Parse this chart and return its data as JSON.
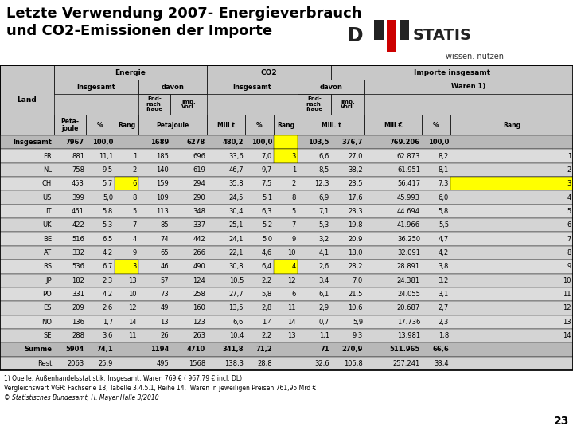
{
  "title_line1": "Letzte Verwendung 2007- Energieverbrauch",
  "title_line2": "und CO2-Emissionen der Importe",
  "footer1": "1) Quelle: Außenhandelsstatistik: Insgesamt: Waren 769 € ( 967,79 € incl. DL)",
  "footer2": "Vergleichswert VGR: Fachserie 18, Tabelle 3.4.5.1, Reihe 14,  Waren in jeweiligen Preisen 761,95 Mrd €",
  "footer3": "© Statistisches Bundesamt, H. Mayer Halle 3/2010",
  "page_number": "23",
  "bg_color": "#c8c8c8",
  "highlight_yellow": "#ffff00",
  "rows": [
    {
      "land": "Insgesamt",
      "pj": "7967",
      "pct1": "100,0",
      "rang1": "",
      "endnach": "1689",
      "imp_vorl": "6278",
      "mill_t": "480,2",
      "pct2": "100,0",
      "rang2": "",
      "endnach2": "103,5",
      "imp_vorl2": "376,7",
      "mill_c": "769.206",
      "pct3": "100,0",
      "rang3": "",
      "bold": true,
      "hl1": false,
      "hl2": true,
      "hl3": false
    },
    {
      "land": "FR",
      "pj": "881",
      "pct1": "11,1",
      "rang1": "1",
      "endnach": "185",
      "imp_vorl": "696",
      "mill_t": "33,6",
      "pct2": "7,0",
      "rang2": "3",
      "endnach2": "6,6",
      "imp_vorl2": "27,0",
      "mill_c": "62.873",
      "pct3": "8,2",
      "rang3": "1",
      "bold": false,
      "hl1": false,
      "hl2": true,
      "hl3": false
    },
    {
      "land": "NL",
      "pj": "758",
      "pct1": "9,5",
      "rang1": "2",
      "endnach": "140",
      "imp_vorl": "619",
      "mill_t": "46,7",
      "pct2": "9,7",
      "rang2": "1",
      "endnach2": "8,5",
      "imp_vorl2": "38,2",
      "mill_c": "61.951",
      "pct3": "8,1",
      "rang3": "2",
      "bold": false,
      "hl1": false,
      "hl2": false,
      "hl3": false
    },
    {
      "land": "CH",
      "pj": "453",
      "pct1": "5,7",
      "rang1": "6",
      "endnach": "159",
      "imp_vorl": "294",
      "mill_t": "35,8",
      "pct2": "7,5",
      "rang2": "2",
      "endnach2": "12,3",
      "imp_vorl2": "23,5",
      "mill_c": "56.417",
      "pct3": "7,3",
      "rang3": "3",
      "bold": false,
      "hl1": true,
      "hl2": false,
      "hl3": true
    },
    {
      "land": "US",
      "pj": "399",
      "pct1": "5,0",
      "rang1": "8",
      "endnach": "109",
      "imp_vorl": "290",
      "mill_t": "24,5",
      "pct2": "5,1",
      "rang2": "8",
      "endnach2": "6,9",
      "imp_vorl2": "17,6",
      "mill_c": "45.993",
      "pct3": "6,0",
      "rang3": "4",
      "bold": false,
      "hl1": false,
      "hl2": false,
      "hl3": false
    },
    {
      "land": "IT",
      "pj": "461",
      "pct1": "5,8",
      "rang1": "5",
      "endnach": "113",
      "imp_vorl": "348",
      "mill_t": "30,4",
      "pct2": "6,3",
      "rang2": "5",
      "endnach2": "7,1",
      "imp_vorl2": "23,3",
      "mill_c": "44.694",
      "pct3": "5,8",
      "rang3": "5",
      "bold": false,
      "hl1": false,
      "hl2": false,
      "hl3": false
    },
    {
      "land": "UK",
      "pj": "422",
      "pct1": "5,3",
      "rang1": "7",
      "endnach": "85",
      "imp_vorl": "337",
      "mill_t": "25,1",
      "pct2": "5,2",
      "rang2": "7",
      "endnach2": "5,3",
      "imp_vorl2": "19,8",
      "mill_c": "41.966",
      "pct3": "5,5",
      "rang3": "6",
      "bold": false,
      "hl1": false,
      "hl2": false,
      "hl3": false
    },
    {
      "land": "BE",
      "pj": "516",
      "pct1": "6,5",
      "rang1": "4",
      "endnach": "74",
      "imp_vorl": "442",
      "mill_t": "24,1",
      "pct2": "5,0",
      "rang2": "9",
      "endnach2": "3,2",
      "imp_vorl2": "20,9",
      "mill_c": "36.250",
      "pct3": "4,7",
      "rang3": "7",
      "bold": false,
      "hl1": false,
      "hl2": false,
      "hl3": false
    },
    {
      "land": "AT",
      "pj": "332",
      "pct1": "4,2",
      "rang1": "9",
      "endnach": "65",
      "imp_vorl": "266",
      "mill_t": "22,1",
      "pct2": "4,6",
      "rang2": "10",
      "endnach2": "4,1",
      "imp_vorl2": "18,0",
      "mill_c": "32.091",
      "pct3": "4,2",
      "rang3": "8",
      "bold": false,
      "hl1": false,
      "hl2": false,
      "hl3": false
    },
    {
      "land": "RS",
      "pj": "536",
      "pct1": "6,7",
      "rang1": "3",
      "endnach": "46",
      "imp_vorl": "490",
      "mill_t": "30,8",
      "pct2": "6,4",
      "rang2": "4",
      "endnach2": "2,6",
      "imp_vorl2": "28,2",
      "mill_c": "28.891",
      "pct3": "3,8",
      "rang3": "9",
      "bold": false,
      "hl1": true,
      "hl2": true,
      "hl3": false
    },
    {
      "land": "JP",
      "pj": "182",
      "pct1": "2,3",
      "rang1": "13",
      "endnach": "57",
      "imp_vorl": "124",
      "mill_t": "10,5",
      "pct2": "2,2",
      "rang2": "12",
      "endnach2": "3,4",
      "imp_vorl2": "7,0",
      "mill_c": "24.381",
      "pct3": "3,2",
      "rang3": "10",
      "bold": false,
      "hl1": false,
      "hl2": false,
      "hl3": false
    },
    {
      "land": "PO",
      "pj": "331",
      "pct1": "4,2",
      "rang1": "10",
      "endnach": "73",
      "imp_vorl": "258",
      "mill_t": "27,7",
      "pct2": "5,8",
      "rang2": "6",
      "endnach2": "6,1",
      "imp_vorl2": "21,5",
      "mill_c": "24.055",
      "pct3": "3,1",
      "rang3": "11",
      "bold": false,
      "hl1": false,
      "hl2": false,
      "hl3": false
    },
    {
      "land": "ES",
      "pj": "209",
      "pct1": "2,6",
      "rang1": "12",
      "endnach": "49",
      "imp_vorl": "160",
      "mill_t": "13,5",
      "pct2": "2,8",
      "rang2": "11",
      "endnach2": "2,9",
      "imp_vorl2": "10,6",
      "mill_c": "20.687",
      "pct3": "2,7",
      "rang3": "12",
      "bold": false,
      "hl1": false,
      "hl2": false,
      "hl3": false
    },
    {
      "land": "NO",
      "pj": "136",
      "pct1": "1,7",
      "rang1": "14",
      "endnach": "13",
      "imp_vorl": "123",
      "mill_t": "6,6",
      "pct2": "1,4",
      "rang2": "14",
      "endnach2": "0,7",
      "imp_vorl2": "5,9",
      "mill_c": "17.736",
      "pct3": "2,3",
      "rang3": "13",
      "bold": false,
      "hl1": false,
      "hl2": false,
      "hl3": false
    },
    {
      "land": "SE",
      "pj": "288",
      "pct1": "3,6",
      "rang1": "11",
      "endnach": "26",
      "imp_vorl": "263",
      "mill_t": "10,4",
      "pct2": "2,2",
      "rang2": "13",
      "endnach2": "1,1",
      "imp_vorl2": "9,3",
      "mill_c": "13.981",
      "pct3": "1,8",
      "rang3": "14",
      "bold": false,
      "hl1": false,
      "hl2": false,
      "hl3": false
    },
    {
      "land": "Summe",
      "pj": "5904",
      "pct1": "74,1",
      "rang1": "",
      "endnach": "1194",
      "imp_vorl": "4710",
      "mill_t": "341,8",
      "pct2": "71,2",
      "rang2": "",
      "endnach2": "71",
      "imp_vorl2": "270,9",
      "mill_c": "511.965",
      "pct3": "66,6",
      "rang3": "",
      "bold": true,
      "hl1": false,
      "hl2": false,
      "hl3": false
    },
    {
      "land": "Rest",
      "pj": "2063",
      "pct1": "25,9",
      "rang1": "",
      "endnach": "495",
      "imp_vorl": "1568",
      "mill_t": "138,3",
      "pct2": "28,8",
      "rang2": "",
      "endnach2": "32,6",
      "imp_vorl2": "105,8",
      "mill_c": "257.241",
      "pct3": "33,4",
      "rang3": "",
      "bold": false,
      "hl1": false,
      "hl2": false,
      "hl3": false
    }
  ]
}
